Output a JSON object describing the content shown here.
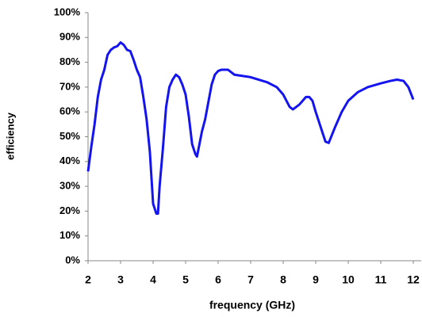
{
  "chart_data": {
    "type": "line",
    "x_label": "frequency (GHz)",
    "y_label": "efficiency",
    "xlim": [
      2,
      12
    ],
    "xticks": [
      2,
      3,
      4,
      5,
      6,
      7,
      8,
      9,
      10,
      11,
      12
    ],
    "ylim": [
      0,
      100
    ],
    "yticks": [
      {
        "value": 0,
        "label": "0%"
      },
      {
        "value": 10,
        "label": "10%"
      },
      {
        "value": 20,
        "label": "20%"
      },
      {
        "value": 30,
        "label": "30%"
      },
      {
        "value": 40,
        "label": "40%"
      },
      {
        "value": 50,
        "label": "50%"
      },
      {
        "value": 60,
        "label": "60%"
      },
      {
        "value": 70,
        "label": "70%"
      },
      {
        "value": 80,
        "label": "80%"
      },
      {
        "value": 90,
        "label": "90%"
      },
      {
        "value": 100,
        "label": "100%"
      }
    ],
    "grid": false,
    "series": [
      {
        "color": "#1414f0",
        "x": [
          2.0,
          2.1,
          2.2,
          2.3,
          2.4,
          2.5,
          2.6,
          2.7,
          2.8,
          2.9,
          3.0,
          3.1,
          3.2,
          3.3,
          3.4,
          3.5,
          3.6,
          3.7,
          3.8,
          3.9,
          4.0,
          4.1,
          4.15,
          4.2,
          4.3,
          4.4,
          4.5,
          4.6,
          4.7,
          4.8,
          4.9,
          5.0,
          5.1,
          5.2,
          5.3,
          5.35,
          5.5,
          5.6,
          5.7,
          5.8,
          5.9,
          6.0,
          6.1,
          6.2,
          6.3,
          6.4,
          6.5,
          7.0,
          7.5,
          7.8,
          8.0,
          8.2,
          8.3,
          8.5,
          8.7,
          8.8,
          8.9,
          9.0,
          9.2,
          9.3,
          9.4,
          9.6,
          9.8,
          10.0,
          10.3,
          10.6,
          11.0,
          11.3,
          11.5,
          11.7,
          11.85,
          12.0
        ],
        "values": [
          36,
          46,
          55,
          66,
          73,
          77,
          83,
          85,
          86,
          86.5,
          88,
          87,
          85,
          84.5,
          81,
          77,
          74,
          66,
          57,
          44,
          23,
          19,
          19,
          30,
          45,
          62,
          70,
          73,
          75,
          74,
          71,
          67,
          58,
          47,
          43,
          42,
          52,
          57,
          64,
          71,
          75,
          76.5,
          77,
          77,
          77,
          76,
          75,
          74,
          72,
          70,
          67,
          62,
          61,
          63,
          66,
          66,
          64.5,
          60,
          52,
          48,
          47.5,
          54,
          60,
          64.5,
          68,
          70,
          71.5,
          72.5,
          73,
          72.5,
          70,
          65
        ]
      }
    ]
  }
}
